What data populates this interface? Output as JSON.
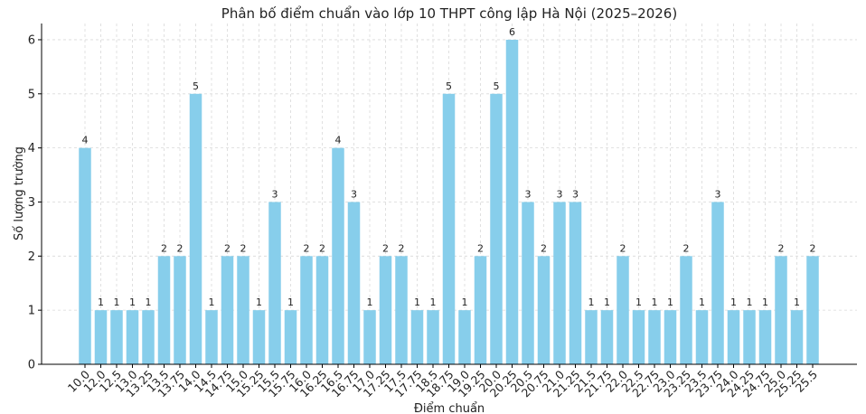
{
  "chart_data": {
    "type": "bar",
    "title": "Phân bố điểm chuẩn vào lớp 10 THPT công lập Hà Nội (2025–2026)",
    "xlabel": "Điểm chuẩn",
    "ylabel": "Số lượng trường",
    "ylim": [
      0,
      6.3
    ],
    "yticks": [
      0,
      1,
      2,
      3,
      4,
      5,
      6
    ],
    "grid": true,
    "bar_color": "#87CEEB",
    "categories": [
      "10.0",
      "12.0",
      "12.5",
      "13.0",
      "13.25",
      "13.5",
      "13.75",
      "14.0",
      "14.5",
      "14.75",
      "15.0",
      "15.25",
      "15.5",
      "15.75",
      "16.0",
      "16.25",
      "16.5",
      "16.75",
      "17.0",
      "17.25",
      "17.5",
      "17.75",
      "18.5",
      "18.75",
      "19.0",
      "19.25",
      "20.0",
      "20.25",
      "20.5",
      "20.75",
      "21.0",
      "21.25",
      "21.5",
      "21.75",
      "22.0",
      "22.5",
      "22.75",
      "23.0",
      "23.25",
      "23.5",
      "23.75",
      "24.0",
      "24.25",
      "24.75",
      "25.0",
      "25.25",
      "25.5"
    ],
    "values": [
      4,
      1,
      1,
      1,
      1,
      2,
      2,
      5,
      1,
      2,
      2,
      1,
      3,
      1,
      2,
      2,
      4,
      3,
      1,
      2,
      2,
      1,
      1,
      5,
      1,
      2,
      5,
      6,
      3,
      2,
      3,
      3,
      1,
      1,
      2,
      1,
      1,
      1,
      2,
      1,
      3,
      1,
      1,
      1,
      2,
      1,
      2
    ]
  }
}
